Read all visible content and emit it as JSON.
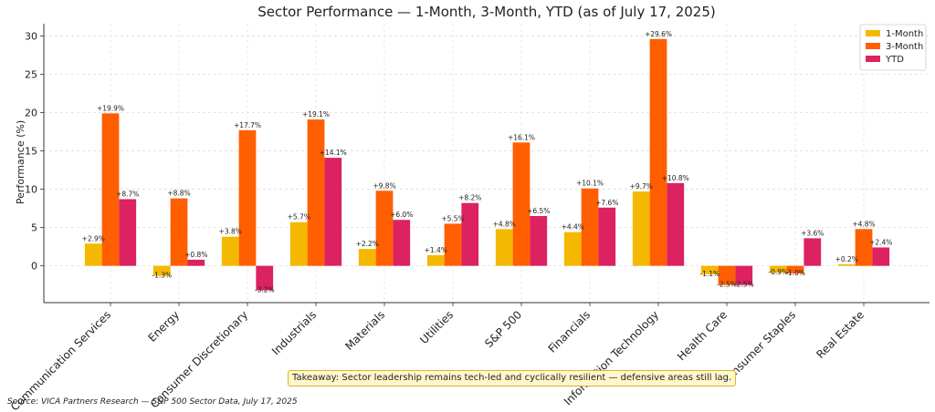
{
  "chart_data": {
    "type": "bar",
    "title": "Sector Performance — 1-Month, 3-Month, YTD (as of July 17, 2025)",
    "xlabel": "",
    "ylabel": "Performance (%)",
    "ylim": [
      -4.8,
      31.6
    ],
    "yticks": [
      0,
      5,
      10,
      15,
      20,
      25,
      30
    ],
    "grid": true,
    "legend_position": "top-right",
    "categories": [
      "Communication Services",
      "Energy",
      "Consumer Discretionary",
      "Industrials",
      "Materials",
      "Utilities",
      "S&P 500",
      "Financials",
      "Information Technology",
      "Health Care",
      "Consumer Staples",
      "Real Estate"
    ],
    "series": [
      {
        "name": "1-Month",
        "color": "#f5b800",
        "values": [
          2.9,
          -1.3,
          3.8,
          5.7,
          2.2,
          1.4,
          4.8,
          4.4,
          9.7,
          -1.1,
          -0.9,
          0.2
        ],
        "labels": [
          "+2.9%",
          "-1.3%",
          "+3.8%",
          "+5.7%",
          "+2.2%",
          "+1.4%",
          "+4.8%",
          "+4.4%",
          "+9.7%",
          "-1.1%",
          "-0.9%",
          "+0.2%"
        ]
      },
      {
        "name": "3-Month",
        "color": "#ff5f00",
        "values": [
          19.9,
          8.8,
          17.7,
          19.1,
          9.8,
          5.5,
          16.1,
          10.1,
          29.6,
          -2.5,
          -1.0,
          4.8
        ],
        "labels": [
          "+19.9%",
          "+8.8%",
          "+17.7%",
          "+19.1%",
          "+9.8%",
          "+5.5%",
          "+16.1%",
          "+10.1%",
          "+29.6%",
          "-2.5%",
          "-1.0%",
          "+4.8%"
        ]
      },
      {
        "name": "YTD",
        "color": "#dc2260",
        "values": [
          8.7,
          0.8,
          -3.2,
          14.1,
          6.0,
          8.2,
          6.5,
          7.6,
          10.8,
          -2.5,
          3.6,
          2.4
        ],
        "labels": [
          "+8.7%",
          "+0.8%",
          "-3.2%",
          "+14.1%",
          "+6.0%",
          "+8.2%",
          "+6.5%",
          "+7.6%",
          "+10.8%",
          "-2.5%",
          "+3.6%",
          "+2.4%"
        ]
      }
    ]
  },
  "annotations": {
    "takeaway": "Takeaway: Sector leadership remains tech-led and cyclically resilient — defensive areas still lag.",
    "source": "Source: VICA Partners Research — S&P 500 Sector Data, July 17, 2025"
  }
}
